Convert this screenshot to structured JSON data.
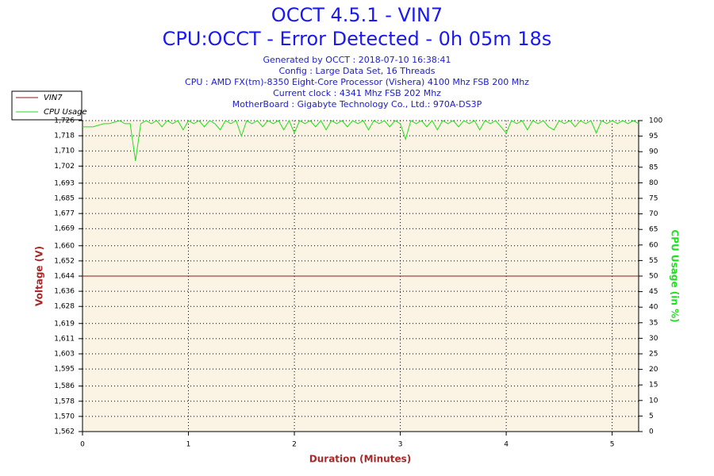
{
  "chart_data": {
    "type": "line",
    "title": "OCCT 4.5.1 - VIN7",
    "subtitle": "CPU:OCCT - Error Detected - 0h 05m 18s",
    "info": [
      "Generated by OCCT : 2018-07-10 16:38:41",
      "Config : Large Data Set, 16 Threads",
      "CPU : AMD FX(tm)-8350 Eight-Core Processor (Vishera) 4100 Mhz FSB 200 Mhz",
      "Current clock : 4341 Mhz FSB 202 Mhz",
      "MotherBoard : Gigabyte Technology Co., Ltd.: 970A-DS3P"
    ],
    "xlabel": "Duration (Minutes)",
    "ylabel": "Voltage (V)",
    "y2label": "CPU Usage (in %)",
    "xlim": [
      0,
      5.25
    ],
    "xticks": [
      0,
      1,
      2,
      3,
      4,
      5
    ],
    "ylim": [
      1.562,
      1.726
    ],
    "yticks": [
      {
        "value": 1.562,
        "label": "1,562"
      },
      {
        "value": 1.57,
        "label": "1,570"
      },
      {
        "value": 1.578,
        "label": "1,578"
      },
      {
        "value": 1.586,
        "label": "1,586"
      },
      {
        "value": 1.595,
        "label": "1,595"
      },
      {
        "value": 1.603,
        "label": "1,603"
      },
      {
        "value": 1.611,
        "label": "1,611"
      },
      {
        "value": 1.619,
        "label": "1,619"
      },
      {
        "value": 1.628,
        "label": "1,628"
      },
      {
        "value": 1.636,
        "label": "1,636"
      },
      {
        "value": 1.644,
        "label": "1,644"
      },
      {
        "value": 1.652,
        "label": "1,652"
      },
      {
        "value": 1.66,
        "label": "1,660"
      },
      {
        "value": 1.669,
        "label": "1,669"
      },
      {
        "value": 1.677,
        "label": "1,677"
      },
      {
        "value": 1.685,
        "label": "1,685"
      },
      {
        "value": 1.693,
        "label": "1,693"
      },
      {
        "value": 1.702,
        "label": "1,702"
      },
      {
        "value": 1.71,
        "label": "1,710"
      },
      {
        "value": 1.718,
        "label": "1,718"
      },
      {
        "value": 1.726,
        "label": "1,726"
      }
    ],
    "y2lim": [
      0,
      100
    ],
    "y2ticks": [
      0,
      5,
      10,
      15,
      20,
      25,
      30,
      35,
      40,
      45,
      50,
      55,
      60,
      65,
      70,
      75,
      80,
      85,
      90,
      95,
      100
    ],
    "grid": true,
    "legend": "top-left",
    "series": [
      {
        "name": "VIN7",
        "color": "#8b1a1a",
        "x": [
          0,
          5.25
        ],
        "values": [
          1.644,
          1.644
        ]
      },
      {
        "name": "CPU Usage",
        "color": "#22dd22",
        "axis": "y2",
        "x": [
          0,
          0.05,
          0.1,
          0.15,
          0.2,
          0.25,
          0.3,
          0.35,
          0.4,
          0.45,
          0.5,
          0.55,
          0.6,
          0.65,
          0.7,
          0.75,
          0.8,
          0.85,
          0.9,
          0.95,
          1,
          1.05,
          1.1,
          1.15,
          1.2,
          1.25,
          1.3,
          1.35,
          1.4,
          1.45,
          1.5,
          1.55,
          1.6,
          1.65,
          1.7,
          1.75,
          1.8,
          1.85,
          1.9,
          1.95,
          2,
          2.05,
          2.1,
          2.15,
          2.2,
          2.25,
          2.3,
          2.35,
          2.4,
          2.45,
          2.5,
          2.55,
          2.6,
          2.65,
          2.7,
          2.75,
          2.8,
          2.85,
          2.9,
          2.95,
          3,
          3.05,
          3.1,
          3.15,
          3.2,
          3.25,
          3.3,
          3.35,
          3.4,
          3.45,
          3.5,
          3.55,
          3.6,
          3.65,
          3.7,
          3.75,
          3.8,
          3.85,
          3.9,
          3.95,
          4,
          4.05,
          4.1,
          4.15,
          4.2,
          4.25,
          4.3,
          4.35,
          4.4,
          4.45,
          4.5,
          4.55,
          4.6,
          4.65,
          4.7,
          4.75,
          4.8,
          4.85,
          4.9,
          4.95,
          5,
          5.05,
          5.1,
          5.15,
          5.2,
          5.25
        ],
        "values": [
          98,
          98,
          98,
          98.5,
          99,
          99,
          99.5,
          100,
          99,
          99,
          87,
          99,
          100,
          99,
          100,
          98,
          100,
          99,
          100,
          97,
          100,
          99,
          100,
          98,
          100,
          99,
          97,
          100,
          99,
          100,
          95,
          100,
          99,
          100,
          98,
          100,
          99,
          100,
          97,
          100,
          96,
          100,
          99,
          100,
          98,
          100,
          97,
          100,
          99,
          100,
          98,
          100,
          99,
          100,
          97,
          100,
          99,
          100,
          98,
          100,
          99,
          94,
          100,
          99,
          100,
          98,
          100,
          97,
          100,
          99,
          100,
          98,
          100,
          99,
          100,
          97,
          100,
          99,
          100,
          98,
          96,
          100,
          99,
          100,
          97,
          100,
          99,
          100,
          98,
          97,
          100,
          99,
          100,
          98,
          100,
          99,
          100,
          96,
          100,
          99,
          100,
          99,
          100,
          99,
          100,
          99
        ]
      }
    ]
  }
}
